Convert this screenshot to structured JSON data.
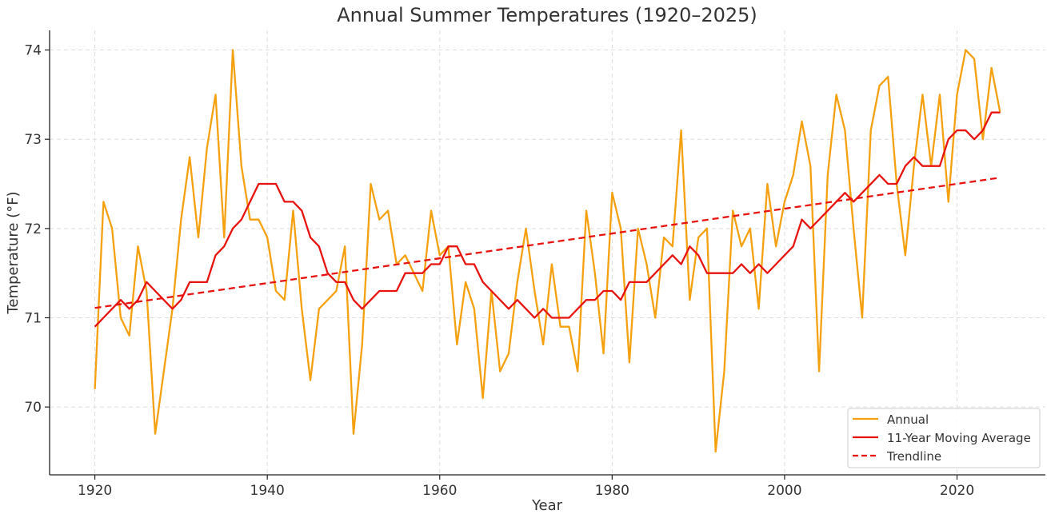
{
  "chart_data": {
    "type": "line",
    "title": "Annual Summer Temperatures (1920–2025)",
    "xlabel": "Year",
    "ylabel": "Temperature (°F)",
    "xlim": [
      1914.75,
      2030.25
    ],
    "ylim": [
      69.24,
      74.22
    ],
    "x_ticks": [
      1920,
      1940,
      1960,
      1980,
      2000,
      2020
    ],
    "y_ticks": [
      70,
      71,
      72,
      73,
      74
    ],
    "grid": true,
    "legend_position": "bottom-right",
    "x": [
      1920,
      1921,
      1922,
      1923,
      1924,
      1925,
      1926,
      1927,
      1928,
      1929,
      1930,
      1931,
      1932,
      1933,
      1934,
      1935,
      1936,
      1937,
      1938,
      1939,
      1940,
      1941,
      1942,
      1943,
      1944,
      1945,
      1946,
      1947,
      1948,
      1949,
      1950,
      1951,
      1952,
      1953,
      1954,
      1955,
      1956,
      1957,
      1958,
      1959,
      1960,
      1961,
      1962,
      1963,
      1964,
      1965,
      1966,
      1967,
      1968,
      1969,
      1970,
      1971,
      1972,
      1973,
      1974,
      1975,
      1976,
      1977,
      1978,
      1979,
      1980,
      1981,
      1982,
      1983,
      1984,
      1985,
      1986,
      1987,
      1988,
      1989,
      1990,
      1991,
      1992,
      1993,
      1994,
      1995,
      1996,
      1997,
      1998,
      1999,
      2000,
      2001,
      2002,
      2003,
      2004,
      2005,
      2006,
      2007,
      2008,
      2009,
      2010,
      2011,
      2012,
      2013,
      2014,
      2015,
      2016,
      2017,
      2018,
      2019,
      2020,
      2021,
      2022,
      2023,
      2024,
      2025
    ],
    "series": [
      {
        "name": "Annual",
        "color": "#f5a00f",
        "style": "solid",
        "values": [
          70.2,
          72.3,
          72.0,
          71.0,
          70.8,
          71.8,
          71.3,
          69.7,
          70.4,
          71.1,
          72.1,
          72.8,
          71.9,
          72.9,
          73.5,
          71.9,
          74.0,
          72.7,
          72.1,
          72.1,
          71.9,
          71.3,
          71.2,
          72.2,
          71.1,
          70.3,
          71.1,
          71.2,
          71.3,
          71.8,
          69.7,
          70.7,
          72.5,
          72.1,
          72.2,
          71.6,
          71.7,
          71.5,
          71.3,
          72.2,
          71.7,
          71.8,
          70.7,
          71.4,
          71.1,
          70.1,
          71.3,
          70.4,
          70.6,
          71.4,
          72.0,
          71.3,
          70.7,
          71.6,
          70.9,
          70.9,
          70.4,
          72.2,
          71.5,
          70.6,
          72.4,
          72.0,
          70.5,
          72.0,
          71.6,
          71.0,
          71.9,
          71.8,
          73.1,
          71.2,
          71.9,
          72.0,
          69.5,
          70.4,
          72.2,
          71.8,
          72.0,
          71.1,
          72.5,
          71.8,
          72.3,
          72.6,
          73.2,
          72.7,
          70.4,
          72.6,
          73.5,
          73.1,
          72.0,
          71.0,
          73.1,
          73.6,
          73.7,
          72.5,
          71.7,
          72.7,
          73.5,
          72.7,
          73.5,
          72.3,
          73.5,
          74.0,
          73.9,
          73.0,
          73.8,
          73.3
        ]
      },
      {
        "name": "11-Year Moving Average",
        "color": "#e8130f",
        "style": "solid",
        "values": [
          70.9,
          71.0,
          71.1,
          71.2,
          71.1,
          71.2,
          71.4,
          71.3,
          71.2,
          71.1,
          71.2,
          71.4,
          71.4,
          71.4,
          71.7,
          71.8,
          72.0,
          72.1,
          72.3,
          72.5,
          72.5,
          72.5,
          72.3,
          72.3,
          72.2,
          71.9,
          71.8,
          71.5,
          71.4,
          71.4,
          71.2,
          71.1,
          71.2,
          71.3,
          71.3,
          71.3,
          71.5,
          71.5,
          71.5,
          71.6,
          71.6,
          71.8,
          71.8,
          71.6,
          71.6,
          71.4,
          71.3,
          71.2,
          71.1,
          71.2,
          71.1,
          71.0,
          71.1,
          71.0,
          71.0,
          71.0,
          71.1,
          71.2,
          71.2,
          71.3,
          71.3,
          71.2,
          71.4,
          71.4,
          71.4,
          71.5,
          71.6,
          71.7,
          71.6,
          71.8,
          71.7,
          71.5,
          71.5,
          71.5,
          71.5,
          71.6,
          71.5,
          71.6,
          71.5,
          71.6,
          71.7,
          71.8,
          72.1,
          72.0,
          72.1,
          72.2,
          72.3,
          72.4,
          72.3,
          72.4,
          72.5,
          72.6,
          72.5,
          72.5,
          72.7,
          72.8,
          72.7,
          72.7,
          72.7,
          73.0,
          73.1,
          73.1,
          73.0,
          73.1,
          73.3,
          73.3
        ]
      },
      {
        "name": "Trendline",
        "color": "#e8130f",
        "style": "dashed",
        "endpoints_x": [
          1920,
          2025
        ],
        "endpoints_y": [
          71.11,
          72.57
        ]
      }
    ]
  }
}
